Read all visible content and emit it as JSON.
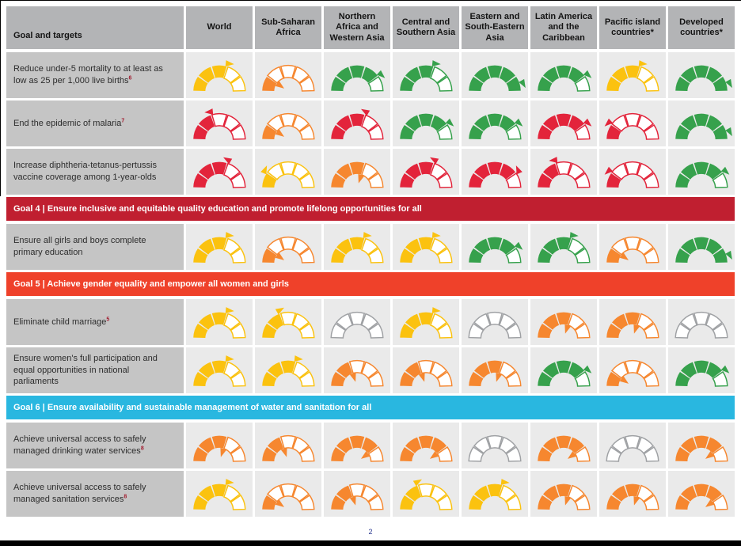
{
  "palette": {
    "yellow": "#FBC20F",
    "orange": "#F6872F",
    "red": "#E3243B",
    "green": "#36A14C",
    "gray": "#9FA1A4",
    "header_bg": "#B3B4B6",
    "label_bg": "#C5C5C5",
    "cell_bg": "#EAEAEA",
    "banner_goal4": "#C01F30",
    "banner_goal5": "#EF412A",
    "banner_goal6": "#29B7E0",
    "page_number_color": "#2B3990",
    "superscript_color": "#A21C2F"
  },
  "table": {
    "header": {
      "label_column": "Goal and targets",
      "columns": [
        "World",
        "Sub-Saharan Africa",
        "Northern Africa and Western Asia",
        "Central and Southern Asia",
        "Eastern and South-Eastern Asia",
        "Latin America and the Caribbean",
        "Pacific island countries*",
        "Developed countries*"
      ]
    },
    "rows": [
      {
        "type": "target",
        "label": "Reduce under-5 mortality to at least as low as 25 per 1,000 live births",
        "superscript": "6",
        "gauges": [
          {
            "color": "yellow",
            "filled": 3,
            "trend": "fwd"
          },
          {
            "color": "orange",
            "filled": 1,
            "trend": "in"
          },
          {
            "color": "green",
            "filled": 4,
            "trend": "fwd"
          },
          {
            "color": "green",
            "filled": 3,
            "trend": "fwd"
          },
          {
            "color": "green",
            "filled": 5,
            "trend": "fwd"
          },
          {
            "color": "green",
            "filled": 4,
            "trend": "fwd"
          },
          {
            "color": "yellow",
            "filled": 3,
            "trend": "fwd"
          },
          {
            "color": "green",
            "filled": 5,
            "trend": "fwd"
          }
        ]
      },
      {
        "type": "target",
        "label": "End the epidemic of malaria",
        "superscript": "7",
        "gauges": [
          {
            "color": "red",
            "filled": 2,
            "trend": "back"
          },
          {
            "color": "orange",
            "filled": 1,
            "trend": "in"
          },
          {
            "color": "red",
            "filled": 3,
            "trend": "back"
          },
          {
            "color": "green",
            "filled": 4,
            "trend": "fwd"
          },
          {
            "color": "green",
            "filled": 4,
            "trend": "fwd"
          },
          {
            "color": "red",
            "filled": 4,
            "trend": "fwd"
          },
          {
            "color": "red",
            "filled": 1,
            "trend": "back"
          },
          {
            "color": "green",
            "filled": 5,
            "trend": "fwd"
          }
        ]
      },
      {
        "type": "target",
        "label": "Increase diphtheria-tetanus-pertussis vaccine coverage among 1-year-olds",
        "superscript": null,
        "gauges": [
          {
            "color": "red",
            "filled": 3,
            "trend": "back"
          },
          {
            "color": "yellow",
            "filled": 1,
            "trend": "fwd"
          },
          {
            "color": "orange",
            "filled": 3,
            "trend": "in"
          },
          {
            "color": "red",
            "filled": 3,
            "trend": "back"
          },
          {
            "color": "red",
            "filled": 4,
            "trend": "back"
          },
          {
            "color": "red",
            "filled": 2,
            "trend": "back"
          },
          {
            "color": "red",
            "filled": 1,
            "trend": "back"
          },
          {
            "color": "green",
            "filled": 4,
            "trend": "fwd"
          }
        ]
      },
      {
        "type": "banner",
        "goal": "4",
        "label": "Goal 4 | Ensure inclusive and equitable quality education and promote lifelong opportunities for all",
        "bg_key": "banner_goal4"
      },
      {
        "type": "target",
        "label": "Ensure all girls and boys complete primary education",
        "superscript": null,
        "gauges": [
          {
            "color": "yellow",
            "filled": 3,
            "trend": "fwd"
          },
          {
            "color": "orange",
            "filled": 1,
            "trend": "in"
          },
          {
            "color": "yellow",
            "filled": 3,
            "trend": "fwd"
          },
          {
            "color": "yellow",
            "filled": 3,
            "trend": "fwd"
          },
          {
            "color": "green",
            "filled": 4,
            "trend": "fwd"
          },
          {
            "color": "green",
            "filled": 3,
            "trend": "fwd"
          },
          {
            "color": "orange",
            "filled": 1,
            "trend": "in"
          },
          {
            "color": "green",
            "filled": 5,
            "trend": "fwd"
          }
        ]
      },
      {
        "type": "banner",
        "goal": "5",
        "label": "Goal 5 | Achieve gender equality and empower all women and girls",
        "bg_key": "banner_goal5"
      },
      {
        "type": "target",
        "label": "Eliminate child marriage",
        "superscript": "5",
        "gauges": [
          {
            "color": "yellow",
            "filled": 3,
            "trend": "fwd"
          },
          {
            "color": "yellow",
            "filled": 2,
            "trend": "fwd"
          },
          {
            "color": "gray",
            "filled": 0,
            "trend": null
          },
          {
            "color": "yellow",
            "filled": 3,
            "trend": "fwd"
          },
          {
            "color": "gray",
            "filled": 0,
            "trend": null
          },
          {
            "color": "orange",
            "filled": 3,
            "trend": "in"
          },
          {
            "color": "orange",
            "filled": 3,
            "trend": "in"
          },
          {
            "color": "gray",
            "filled": 0,
            "trend": null
          }
        ]
      },
      {
        "type": "target",
        "label": "Ensure women's full participation and equal opportunities in national parliaments",
        "superscript": null,
        "gauges": [
          {
            "color": "yellow",
            "filled": 3,
            "trend": "fwd"
          },
          {
            "color": "yellow",
            "filled": 3,
            "trend": "fwd"
          },
          {
            "color": "orange",
            "filled": 2,
            "trend": "in"
          },
          {
            "color": "orange",
            "filled": 2,
            "trend": "in"
          },
          {
            "color": "orange",
            "filled": 3,
            "trend": "in"
          },
          {
            "color": "green",
            "filled": 4,
            "trend": "fwd"
          },
          {
            "color": "orange",
            "filled": 1,
            "trend": "in"
          },
          {
            "color": "green",
            "filled": 4,
            "trend": "fwd"
          }
        ]
      },
      {
        "type": "banner",
        "goal": "6",
        "label": "Goal 6 | Ensure availability and sustainable management of water and sanitation for all",
        "bg_key": "banner_goal6"
      },
      {
        "type": "target",
        "label": "Achieve universal access to safely managed drinking water services",
        "superscript": "8",
        "gauges": [
          {
            "color": "orange",
            "filled": 3,
            "trend": "in"
          },
          {
            "color": "orange",
            "filled": 2,
            "trend": "in"
          },
          {
            "color": "orange",
            "filled": 4,
            "trend": "in"
          },
          {
            "color": "orange",
            "filled": 4,
            "trend": "in"
          },
          {
            "color": "gray",
            "filled": 0,
            "trend": null
          },
          {
            "color": "orange",
            "filled": 4,
            "trend": "in"
          },
          {
            "color": "gray",
            "filled": 0,
            "trend": null
          },
          {
            "color": "orange",
            "filled": 4,
            "trend": "in"
          }
        ]
      },
      {
        "type": "target",
        "label": "Achieve universal access to safely managed sanitation services",
        "superscript": "8",
        "gauges": [
          {
            "color": "yellow",
            "filled": 3,
            "trend": "fwd"
          },
          {
            "color": "orange",
            "filled": 1,
            "trend": "in"
          },
          {
            "color": "orange",
            "filled": 2,
            "trend": "in"
          },
          {
            "color": "yellow",
            "filled": 2,
            "trend": "fwd"
          },
          {
            "color": "yellow",
            "filled": 3,
            "trend": "fwd"
          },
          {
            "color": "orange",
            "filled": 3,
            "trend": "in"
          },
          {
            "color": "orange",
            "filled": 3,
            "trend": "in"
          },
          {
            "color": "orange",
            "filled": 4,
            "trend": "in"
          }
        ]
      }
    ]
  },
  "footer": {
    "page_number": "2"
  }
}
